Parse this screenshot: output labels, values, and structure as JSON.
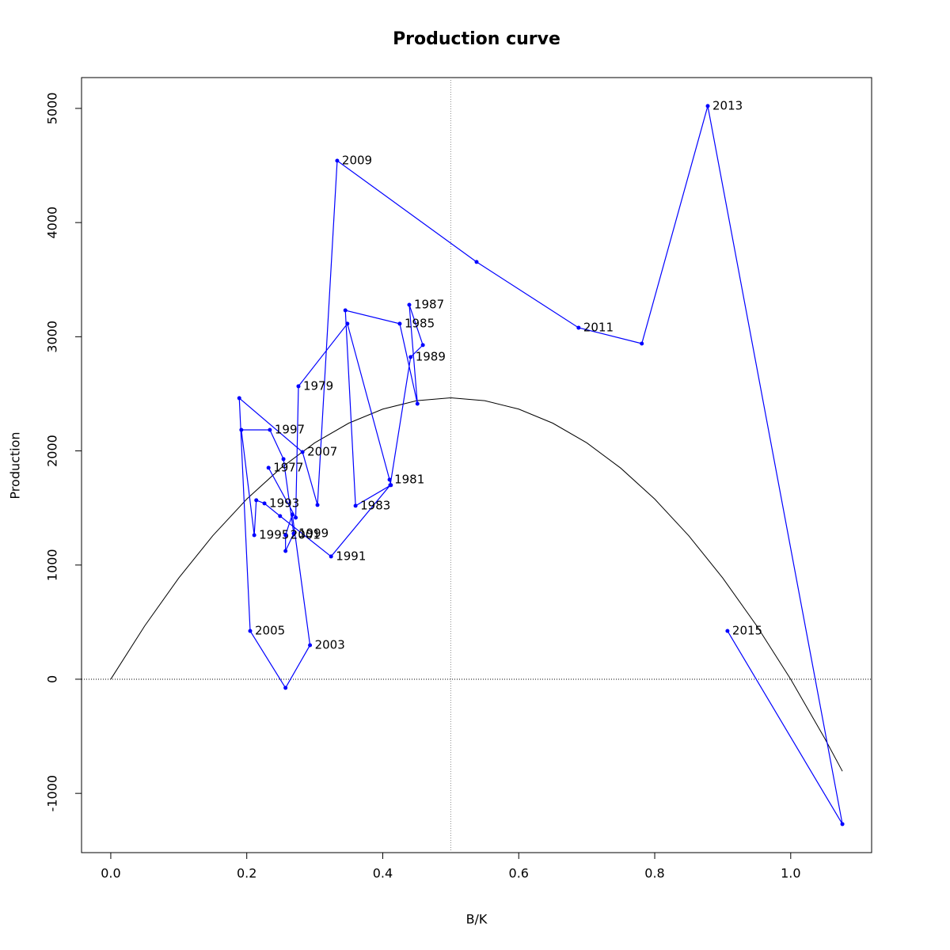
{
  "chart_data": {
    "type": "scatter",
    "title": "Production curve",
    "x_label": "B/K",
    "y_label": "Production",
    "xlim": [
      -0.043,
      1.119
    ],
    "ylim": [
      -1519,
      5270
    ],
    "xticks": [
      {
        "value": 0,
        "label": "0.0"
      },
      {
        "value": 0.2,
        "label": "0.2"
      },
      {
        "value": 0.4,
        "label": "0.4"
      },
      {
        "value": 0.6,
        "label": "0.6"
      },
      {
        "value": 0.8,
        "label": "0.8"
      },
      {
        "value": 1,
        "label": "1.0"
      }
    ],
    "yticks": [
      -1000,
      0,
      1000,
      2000,
      3000,
      4000,
      5000
    ],
    "vline": 0.5,
    "hline": 0,
    "series": [
      {
        "color": "#0000ff",
        "x": [
          0.232,
          0.272,
          0.276,
          0.348,
          0.41,
          0.412,
          0.36,
          0.345,
          0.425,
          0.451,
          0.439,
          0.459,
          0.441,
          0.411,
          0.324,
          0.249,
          0.226,
          0.214,
          0.211,
          0.192,
          0.234,
          0.254,
          0.269,
          0.257,
          0.257,
          0.267,
          0.293,
          0.257,
          0.205,
          0.189,
          0.282,
          0.304,
          0.333,
          0.538,
          0.688,
          0.781,
          0.878,
          1.076,
          0.907
        ],
        "values": [
          1852,
          1415,
          2566,
          3114,
          1748,
          1700,
          1519,
          3231,
          3114,
          2413,
          3280,
          2927,
          2822,
          1700,
          1075,
          1429,
          1540,
          1568,
          1262,
          2184,
          2184,
          1928,
          1276,
          1123,
          1262,
          1443,
          298,
          -76,
          423,
          2462,
          1990,
          1526,
          4542,
          3655,
          3079,
          2940,
          5021,
          -1269,
          423
        ],
        "labels": [
          "1977",
          null,
          "1979",
          null,
          "1981",
          null,
          "1983",
          null,
          "1985",
          null,
          "1987",
          null,
          "1989",
          null,
          "1991",
          null,
          "1993",
          null,
          "1995",
          null,
          "1997",
          null,
          "1999",
          null,
          "2001",
          null,
          "2003",
          null,
          "2005",
          null,
          "2007",
          null,
          "2009",
          null,
          "2011",
          null,
          "2013",
          null,
          "2015"
        ]
      }
    ],
    "curve": {
      "color": "#000000",
      "x": [
        0,
        0.05,
        0.1,
        0.15,
        0.2,
        0.25,
        0.3,
        0.35,
        0.4,
        0.45,
        0.5,
        0.55,
        0.6,
        0.65,
        0.7,
        0.75,
        0.8,
        0.85,
        0.9,
        0.95,
        1.0,
        1.05,
        1.076
      ],
      "values": [
        0,
        468,
        887,
        1257,
        1578,
        1849,
        2071,
        2243,
        2366,
        2440,
        2465,
        2440,
        2366,
        2243,
        2071,
        1849,
        1578,
        1257,
        887,
        468,
        0,
        -518,
        -806
      ]
    }
  }
}
